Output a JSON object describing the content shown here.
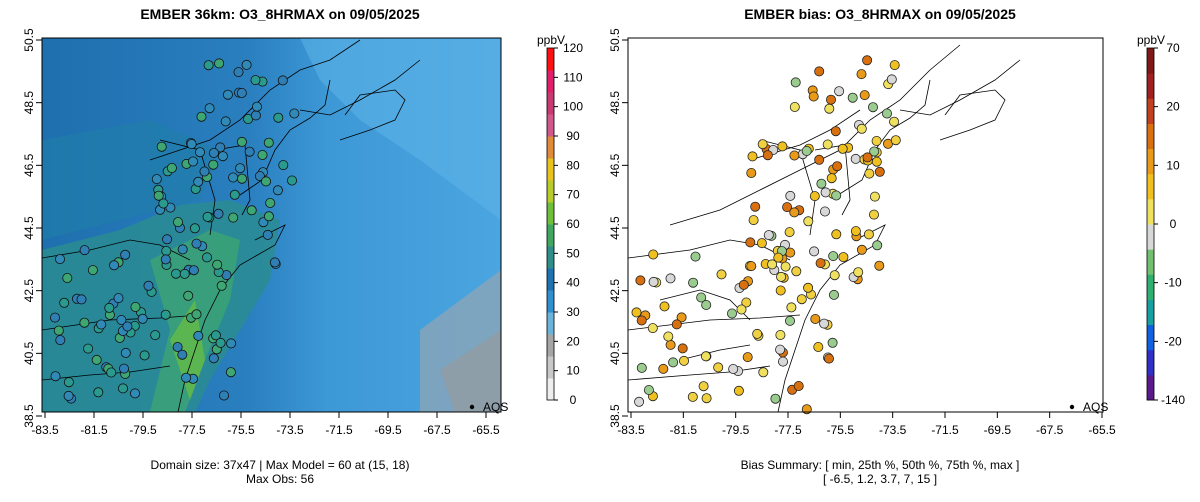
{
  "left_panel": {
    "title": "EMBER 36km: O3_8HRMAX on 09/05/2025",
    "footer_line1": "Domain size: 37x47 | Max Model = 60 at (15, 18)",
    "footer_line2": "Max Obs: 56",
    "legend_label": "AQS",
    "colorbar": {
      "unit": "ppbV",
      "ticks": [
        "0",
        "10",
        "20",
        "30",
        "40",
        "50",
        "60",
        "70",
        "80",
        "90",
        "100",
        "110",
        "120"
      ],
      "colors": [
        "#eeeeee",
        "#c8c8c8",
        "#a6a6a6",
        "#6ab4dc",
        "#2f8fd0",
        "#1f72b2",
        "#2e8f8a",
        "#3fa760",
        "#6fbf3c",
        "#b8cc2c",
        "#e8c21f",
        "#e08a3a",
        "#d2588c",
        "#c93a72",
        "#e0206a",
        "#ff1010"
      ]
    },
    "axes": {
      "x_ticks": [
        "-83.5",
        "-81.5",
        "-79.5",
        "-77.5",
        "-75.5",
        "-73.5",
        "-71.5",
        "-69.5",
        "-67.5",
        "-65.5"
      ],
      "y_ticks": [
        "38.5",
        "40.5",
        "42.5",
        "44.5",
        "46.5",
        "48.5",
        "50.5"
      ]
    }
  },
  "right_panel": {
    "title": "EMBER bias: O3_8HRMAX on 09/05/2025",
    "footer_line1": "Bias Summary: [ min, 25th %, 50th %, 75th %, max ]",
    "footer_line2": "[ -6.5,   1.2,   3.7,   7,   15 ]",
    "legend_label": "AQS",
    "colorbar": {
      "unit": "ppbV",
      "ticks": [
        "-140",
        "-20",
        "-10",
        "0",
        "10",
        "20",
        "70"
      ],
      "colors": [
        "#5a1a8c",
        "#3030c8",
        "#1060e0",
        "#18a0a0",
        "#30b070",
        "#70c070",
        "#d8d8d8",
        "#f0e060",
        "#f0c020",
        "#e89a18",
        "#d87010",
        "#c04020",
        "#a02020",
        "#801818"
      ]
    },
    "axes": {
      "x_ticks": [
        "-83.5",
        "-81.5",
        "-79.5",
        "-77.5",
        "-75.5",
        "-73.5",
        "-71.5",
        "-69.5",
        "-67.5",
        "-65.5"
      ],
      "y_ticks": [
        "38.5",
        "40.5",
        "42.5",
        "44.5",
        "46.5",
        "48.5",
        "50.5"
      ]
    },
    "bias_summary": {
      "min": -6.5,
      "p25": 1.2,
      "p50": 3.7,
      "p75": 7,
      "max": 15
    }
  }
}
